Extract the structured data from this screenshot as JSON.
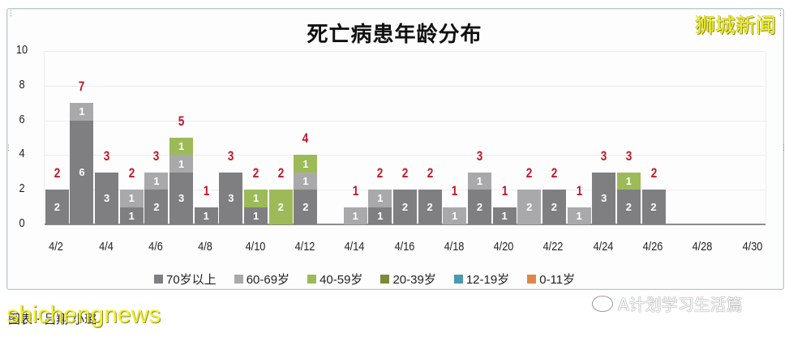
{
  "title": "死亡病患年龄分布",
  "brand": "狮城新闻",
  "caption": "图表 · 吕翔 小璐",
  "watermark_overlay": "shichengnews",
  "watermark_account": "A计划学习生活篇",
  "colors": {
    "70+": "#7f7f82",
    "60-69": "#a9a9ab",
    "40-59": "#9cbb58",
    "20-39": "#7b8b3a",
    "12-19": "#4b9aad",
    "0-11": "#dd8848",
    "total_label": "#c0182b"
  },
  "chart_data": {
    "type": "bar",
    "stacked": true,
    "title": "死亡病患年龄分布",
    "xlabel": "",
    "ylabel": "",
    "ylim": [
      0,
      10
    ],
    "yticks": [
      0,
      2,
      4,
      6,
      8,
      10
    ],
    "grid": true,
    "legend_position": "bottom",
    "x": [
      "4/2",
      "4/3",
      "4/4",
      "4/5",
      "4/6",
      "4/7",
      "4/8",
      "4/9",
      "4/10",
      "4/11",
      "4/12",
      "4/13",
      "4/14",
      "4/15",
      "4/16",
      "4/17",
      "4/18",
      "4/19",
      "4/20",
      "4/21",
      "4/22",
      "4/23",
      "4/24",
      "4/25",
      "4/26",
      "4/27",
      "4/28",
      "4/29",
      "4/30"
    ],
    "xtick_labels": [
      "4/2",
      "4/4",
      "4/6",
      "4/8",
      "4/10",
      "4/12",
      "4/14",
      "4/16",
      "4/18",
      "4/20",
      "4/22",
      "4/24",
      "4/26",
      "4/28",
      "4/30"
    ],
    "series": [
      {
        "name": "70岁以上",
        "key": "70+",
        "values": [
          2,
          6,
          3,
          1,
          2,
          3,
          1,
          3,
          1,
          0,
          2,
          0,
          0,
          1,
          2,
          2,
          0,
          2,
          1,
          0,
          2,
          0,
          3,
          2,
          2,
          0,
          0,
          0,
          0
        ]
      },
      {
        "name": "60-69岁",
        "key": "60-69",
        "values": [
          0,
          1,
          0,
          1,
          1,
          1,
          0,
          0,
          0,
          0,
          1,
          0,
          1,
          1,
          0,
          0,
          1,
          1,
          0,
          2,
          0,
          1,
          0,
          0,
          0,
          0,
          0,
          0,
          0
        ]
      },
      {
        "name": "40-59岁",
        "key": "40-59",
        "values": [
          0,
          0,
          0,
          0,
          0,
          1,
          0,
          0,
          1,
          2,
          1,
          0,
          0,
          0,
          0,
          0,
          0,
          0,
          0,
          0,
          0,
          0,
          0,
          1,
          0,
          0,
          0,
          0,
          0
        ]
      },
      {
        "name": "20-39岁",
        "key": "20-39",
        "values": [
          0,
          0,
          0,
          0,
          0,
          0,
          0,
          0,
          0,
          0,
          0,
          0,
          0,
          0,
          0,
          0,
          0,
          0,
          0,
          0,
          0,
          0,
          0,
          0,
          0,
          0,
          0,
          0,
          0
        ]
      },
      {
        "name": "12-19岁",
        "key": "12-19",
        "values": [
          0,
          0,
          0,
          0,
          0,
          0,
          0,
          0,
          0,
          0,
          0,
          0,
          0,
          0,
          0,
          0,
          0,
          0,
          0,
          0,
          0,
          0,
          0,
          0,
          0,
          0,
          0,
          0,
          0
        ]
      },
      {
        "name": "0-11岁",
        "key": "0-11",
        "values": [
          0,
          0,
          0,
          0,
          0,
          0,
          0,
          0,
          0,
          0,
          0,
          0,
          0,
          0,
          0,
          0,
          0,
          0,
          0,
          0,
          0,
          0,
          0,
          0,
          0,
          0,
          0,
          0,
          0
        ]
      }
    ],
    "totals": [
      2,
      7,
      3,
      2,
      3,
      5,
      1,
      3,
      2,
      2,
      4,
      0,
      1,
      2,
      2,
      2,
      1,
      3,
      1,
      2,
      2,
      1,
      3,
      3,
      2,
      0,
      0,
      0,
      0
    ]
  },
  "legend": [
    {
      "label": "70岁以上",
      "key": "70+"
    },
    {
      "label": "60-69岁",
      "key": "60-69"
    },
    {
      "label": "40-59岁",
      "key": "40-59"
    },
    {
      "label": "20-39岁",
      "key": "20-39"
    },
    {
      "label": "12-19岁",
      "key": "12-19"
    },
    {
      "label": "0-11岁",
      "key": "0-11"
    }
  ]
}
